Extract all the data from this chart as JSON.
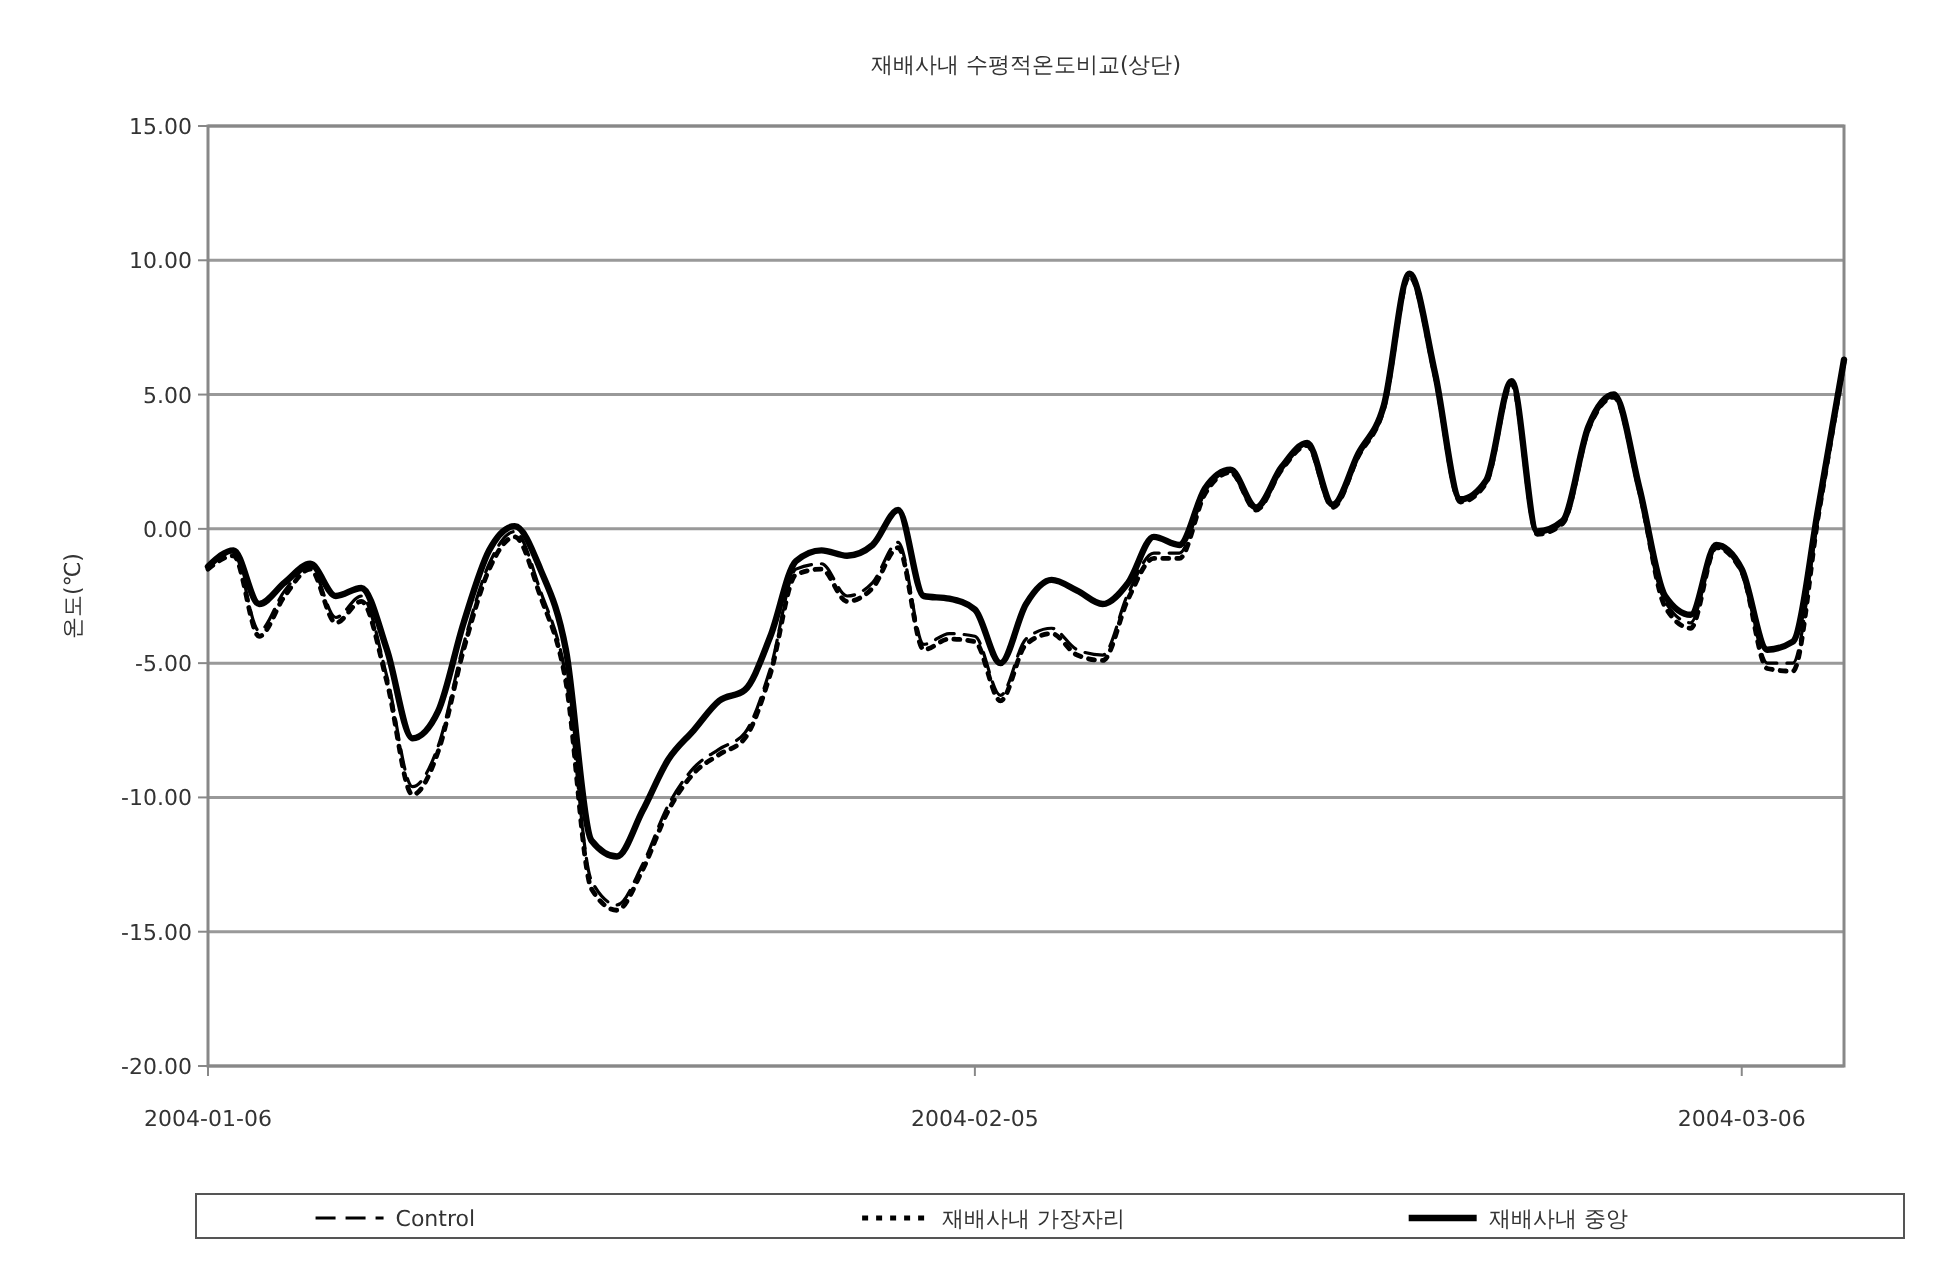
{
  "chart_data": {
    "type": "line",
    "title": "재배사내 수평적온도비교(상단)",
    "ylabel": "온도(℃)",
    "x": [
      "2004-01-06",
      "2004-01-07",
      "2004-01-08",
      "2004-01-09",
      "2004-01-10",
      "2004-01-11",
      "2004-01-12",
      "2004-01-13",
      "2004-01-14",
      "2004-01-15",
      "2004-01-16",
      "2004-01-17",
      "2004-01-18",
      "2004-01-19",
      "2004-01-20",
      "2004-01-21",
      "2004-01-22",
      "2004-01-23",
      "2004-01-24",
      "2004-01-25",
      "2004-01-26",
      "2004-01-27",
      "2004-01-28",
      "2004-01-29",
      "2004-01-30",
      "2004-01-31",
      "2004-02-01",
      "2004-02-02",
      "2004-02-03",
      "2004-02-04",
      "2004-02-05",
      "2004-02-06",
      "2004-02-07",
      "2004-02-08",
      "2004-02-09",
      "2004-02-10",
      "2004-02-11",
      "2004-02-12",
      "2004-02-13",
      "2004-02-14",
      "2004-02-15",
      "2004-02-16",
      "2004-02-17",
      "2004-02-18",
      "2004-02-19",
      "2004-02-20",
      "2004-02-21",
      "2004-02-22",
      "2004-02-23",
      "2004-02-24",
      "2004-02-25",
      "2004-02-26",
      "2004-02-27",
      "2004-02-28",
      "2004-02-29",
      "2004-03-01",
      "2004-03-02",
      "2004-03-03",
      "2004-03-04",
      "2004-03-05",
      "2004-03-06",
      "2004-03-07",
      "2004-03-08",
      "2004-03-09",
      "2004-03-10"
    ],
    "series": [
      {
        "name": "Control",
        "color": "#000000",
        "line_style": "dashed",
        "values": [
          -1.4,
          -0.9,
          -3.8,
          -2.3,
          -1.4,
          -3.3,
          -2.5,
          -5.5,
          -9.6,
          -8.1,
          -4.3,
          -1.3,
          -0.1,
          -2.3,
          -5.5,
          -13.1,
          -14.0,
          -12.5,
          -10.3,
          -8.9,
          -8.2,
          -7.6,
          -5.2,
          -1.5,
          -1.3,
          -2.5,
          -2.0,
          -0.5,
          -4.3,
          -3.9,
          -4.0,
          -6.2,
          -4.1,
          -3.7,
          -4.5,
          -4.7,
          -2.4,
          -0.9,
          -0.9,
          1.4,
          2.2,
          0.8,
          2.3,
          3.2,
          0.9,
          2.8,
          4.6,
          9.5,
          5.8,
          1.1,
          1.8,
          5.5,
          -0.1,
          0.3,
          3.8,
          5.0,
          1.5,
          -2.7,
          -3.5,
          -0.6,
          -1.5,
          -5.0,
          -5.0,
          0.6,
          6.3
        ]
      },
      {
        "name": "재배사내 가장자리",
        "color": "#000000",
        "line_style": "dotted",
        "values": [
          -1.5,
          -1.0,
          -4.0,
          -2.5,
          -1.5,
          -3.5,
          -2.7,
          -5.7,
          -9.9,
          -8.3,
          -4.5,
          -1.5,
          -0.3,
          -2.5,
          -5.7,
          -13.4,
          -14.2,
          -12.7,
          -10.5,
          -9.1,
          -8.4,
          -7.8,
          -5.4,
          -1.7,
          -1.5,
          -2.7,
          -2.2,
          -0.7,
          -4.5,
          -4.1,
          -4.2,
          -6.4,
          -4.3,
          -3.9,
          -4.7,
          -4.9,
          -2.6,
          -1.1,
          -1.1,
          1.3,
          2.1,
          0.7,
          2.2,
          3.1,
          0.8,
          2.7,
          4.5,
          9.4,
          5.7,
          1.0,
          1.7,
          5.4,
          -0.2,
          0.2,
          3.7,
          4.9,
          1.4,
          -2.9,
          -3.7,
          -0.7,
          -1.6,
          -5.2,
          -5.3,
          0.5,
          6.2
        ]
      },
      {
        "name": "재배사내 중앙",
        "color": "#000000",
        "line_style": "solid",
        "values": [
          -1.4,
          -0.8,
          -2.8,
          -2.0,
          -1.3,
          -2.5,
          -2.2,
          -4.5,
          -7.8,
          -6.8,
          -3.5,
          -0.8,
          0.1,
          -1.5,
          -4.5,
          -11.6,
          -12.2,
          -10.5,
          -8.6,
          -7.5,
          -6.4,
          -6.0,
          -4.0,
          -1.2,
          -0.8,
          -1.0,
          -0.6,
          0.7,
          -2.5,
          -2.6,
          -3.0,
          -5.0,
          -2.8,
          -1.9,
          -2.3,
          -2.8,
          -2.0,
          -0.3,
          -0.6,
          1.5,
          2.2,
          0.8,
          2.3,
          3.2,
          0.9,
          2.8,
          4.6,
          9.5,
          5.8,
          1.1,
          1.8,
          5.5,
          -0.1,
          0.3,
          3.8,
          5.0,
          1.5,
          -2.5,
          -3.2,
          -0.6,
          -1.5,
          -4.5,
          -4.2,
          0.8,
          6.3
        ]
      }
    ],
    "xlim": [
      "2004-01-06",
      "2004-03-10"
    ],
    "xticks": [
      "2004-01-06",
      "2004-02-05",
      "2004-03-06"
    ],
    "ylim": [
      -20,
      15
    ],
    "yticks": [
      {
        "value": -20,
        "label": "-20.00"
      },
      {
        "value": -15,
        "label": "-15.00"
      },
      {
        "value": -10,
        "label": "-10.00"
      },
      {
        "value": -5,
        "label": "-5.00"
      },
      {
        "value": 0,
        "label": "0.00"
      },
      {
        "value": 5,
        "label": "5.00"
      },
      {
        "value": 10,
        "label": "10.00"
      },
      {
        "value": 15,
        "label": "15.00"
      }
    ],
    "grid": "y",
    "legend": "bottom"
  }
}
